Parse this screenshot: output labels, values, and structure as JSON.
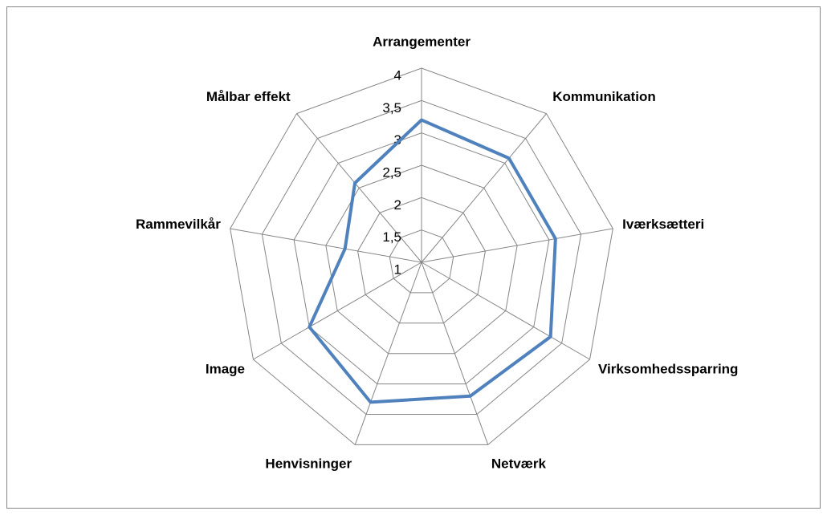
{
  "chart_data": {
    "type": "radar",
    "categories": [
      "Arrangementer",
      "Kommunikation",
      "Iværksætteri",
      "Virksomhedssparring",
      "Netværk",
      "Henvisninger",
      "Image",
      "Rammevilkår",
      "Målbar effekt"
    ],
    "series": [
      {
        "color": "#4f81bd",
        "values": [
          3.2,
          3.1,
          3.1,
          3.3,
          3.2,
          3.3,
          3.0,
          2.2,
          2.6
        ]
      }
    ],
    "ylim": [
      1,
      4
    ],
    "yticks": [
      1,
      {
        "value": 1.5,
        "label": "1,5"
      },
      2,
      {
        "value": 2.5,
        "label": "2,5"
      },
      3,
      {
        "value": 3.5,
        "label": "3,5"
      },
      4
    ],
    "grid": true
  }
}
